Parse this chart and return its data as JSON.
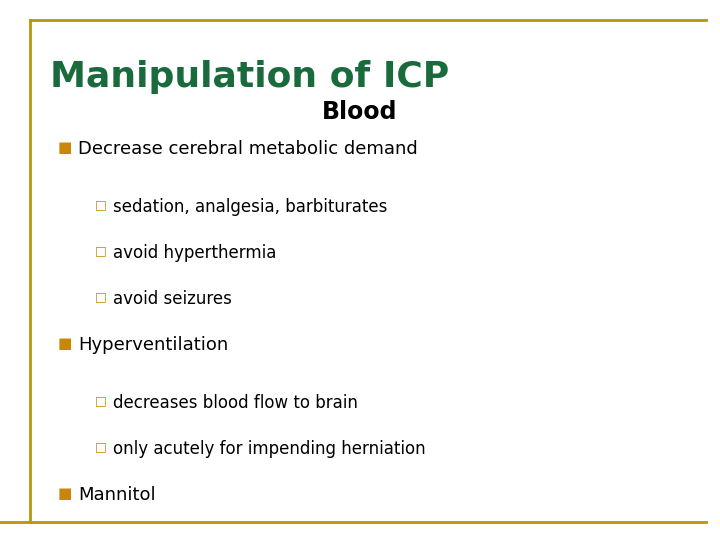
{
  "title": "Manipulation of ICP",
  "subtitle": "Blood",
  "title_color": "#1a6b3c",
  "subtitle_color": "#000000",
  "bg_color": "#ffffff",
  "border_color": "#b8960c",
  "bullet_color": "#c8860a",
  "text_color": "#000000",
  "title_fontsize": 26,
  "subtitle_fontsize": 17,
  "body_fontsize": 13,
  "sub_body_fontsize": 12,
  "bullet_items": [
    {
      "level": 1,
      "text": "Decrease cerebral metabolic demand"
    },
    {
      "level": 2,
      "text": "sedation, analgesia, barbiturates"
    },
    {
      "level": 2,
      "text": "avoid hyperthermia"
    },
    {
      "level": 2,
      "text": "avoid seizures"
    },
    {
      "level": 1,
      "text": "Hyperventilation"
    },
    {
      "level": 2,
      "text": "decreases blood flow to brain"
    },
    {
      "level": 2,
      "text": "only acutely for impending herniation"
    },
    {
      "level": 1,
      "text": "Mannitol"
    }
  ]
}
